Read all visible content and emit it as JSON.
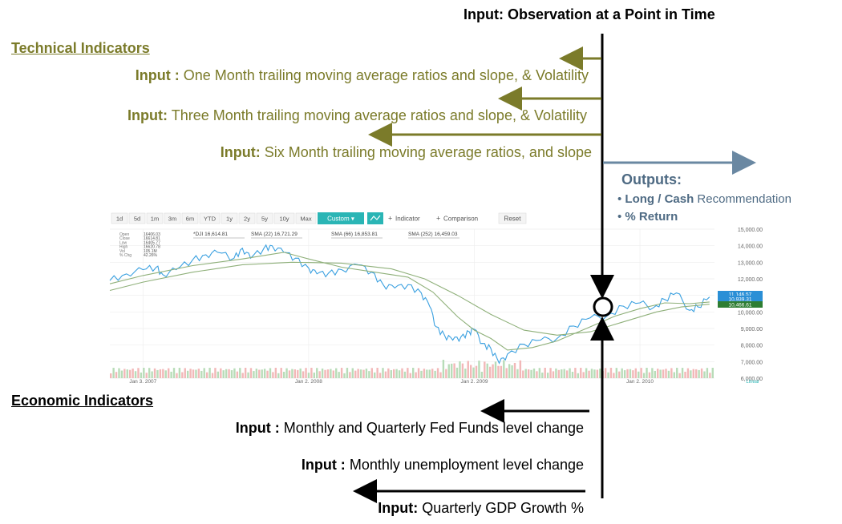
{
  "title": "Input: Observation at a Point in Time",
  "technical": {
    "heading": "Technical Indicators",
    "inputs": [
      {
        "label": "Input :",
        "text": "One Month trailing moving average ratios and slope, & Volatility"
      },
      {
        "label": "Input:",
        "text": "Three Month trailing moving average ratios and slope, & Volatility"
      },
      {
        "label": "Input:",
        "text": "Six Month trailing moving average ratios, and slope"
      }
    ]
  },
  "outputs": {
    "heading": "Outputs:",
    "items": [
      {
        "bold": "Long / Cash",
        "rest": " Recommendation"
      },
      {
        "bold": "% Return",
        "rest": ""
      }
    ]
  },
  "economic": {
    "heading": "Economic Indicators",
    "inputs": [
      {
        "label": "Input :",
        "text": "Monthly and Quarterly Fed Funds level change"
      },
      {
        "label": "Input :",
        "text": "Monthly unemployment level change"
      },
      {
        "label": "Input:",
        "text": "Quarterly GDP Growth %"
      }
    ]
  },
  "colors": {
    "olive": "#7b7b2a",
    "steel": "#4f6b84",
    "price": "#3aa0e0",
    "sma": "#8fb07a",
    "toolbar_active": "#2ab5b5",
    "badge_blue": "#2a8fd6",
    "badge_green": "#2e7d32"
  },
  "chart_toolbar": {
    "ranges": [
      "1d",
      "5d",
      "1m",
      "3m",
      "6m",
      "YTD",
      "1y",
      "2y",
      "5y",
      "10y",
      "Max"
    ],
    "custom": "Custom ▾",
    "indicator": "Indicator",
    "comparison": "Comparison",
    "reset": "Reset"
  },
  "chart_info": {
    "ohlc_labels": [
      "Open",
      "Close",
      "Low",
      "High",
      "Vol",
      "% Chg"
    ],
    "ohlc_values": [
      "16406.03",
      "16614.81",
      "16405.77",
      "16620.78",
      "105.1M",
      "42.26%"
    ],
    "legend": [
      "*DJI 16,614.81",
      "SMA (22) 16,721.29",
      "SMA (66) 16,853.81",
      "SMA (252) 16,459.03"
    ],
    "badges": [
      "11,146.57",
      "10,939.31",
      "10,466.61"
    ],
    "scale_label": "Linear"
  },
  "chart_data": {
    "type": "line",
    "x_ticks": [
      "Jan 3, 2007",
      "Jan 2, 2008",
      "Jan 2, 2009",
      "Jan 2, 2010"
    ],
    "y_ticks": [
      "15,000.00",
      "14,000.00",
      "13,000.00",
      "12,000.00",
      "11,000.00",
      "10,000.00",
      "9,000.00",
      "8,000.00",
      "7,000.00",
      "6,000.00"
    ],
    "ylim": [
      6000,
      15000
    ],
    "xlim": [
      2006.8,
      2010.45
    ],
    "observation_x": 2010.05,
    "series": [
      {
        "name": "*DJI",
        "x": [
          2006.8,
          2006.9,
          2007.0,
          2007.08,
          2007.12,
          2007.2,
          2007.3,
          2007.38,
          2007.45,
          2007.55,
          2007.6,
          2007.65,
          2007.73,
          2007.78,
          2007.85,
          2007.92,
          2008.0,
          2008.05,
          2008.12,
          2008.2,
          2008.3,
          2008.38,
          2008.45,
          2008.52,
          2008.6,
          2008.68,
          2008.73,
          2008.77,
          2008.82,
          2008.87,
          2008.92,
          2008.97,
          2009.0,
          2009.05,
          2009.1,
          2009.15,
          2009.2,
          2009.3,
          2009.4,
          2009.5,
          2009.6,
          2009.7,
          2009.8,
          2009.9,
          2010.0,
          2010.08,
          2010.15,
          2010.22,
          2010.3,
          2010.35,
          2010.42
        ],
        "values": [
          11900,
          12300,
          12550,
          12700,
          12250,
          12550,
          13150,
          13450,
          13600,
          13250,
          13850,
          13250,
          13850,
          14000,
          13600,
          13250,
          12650,
          12300,
          12350,
          12550,
          12850,
          12400,
          11650,
          11450,
          11650,
          11150,
          10350,
          9100,
          8600,
          8300,
          8500,
          8800,
          8950,
          8100,
          7800,
          6900,
          7450,
          8050,
          8300,
          8400,
          9150,
          9650,
          9750,
          10350,
          10550,
          10250,
          10750,
          11150,
          10100,
          10300,
          10900
        ]
      },
      {
        "name": "SMA (66)",
        "x": [
          2006.8,
          2007.0,
          2007.3,
          2007.6,
          2007.85,
          2008.0,
          2008.2,
          2008.4,
          2008.6,
          2008.75,
          2008.9,
          2009.0,
          2009.1,
          2009.2,
          2009.35,
          2009.5,
          2009.7,
          2009.85,
          2010.0,
          2010.15,
          2010.3,
          2010.42
        ],
        "values": [
          11700,
          12200,
          12800,
          13200,
          13600,
          13200,
          12700,
          12400,
          12100,
          11200,
          9700,
          8900,
          8400,
          7700,
          7850,
          8250,
          9100,
          9750,
          10200,
          10550,
          10500,
          10600
        ]
      },
      {
        "name": "SMA (252)",
        "x": [
          2006.8,
          2007.0,
          2007.3,
          2007.6,
          2007.9,
          2008.2,
          2008.5,
          2008.7,
          2008.9,
          2009.1,
          2009.3,
          2009.5,
          2009.7,
          2009.9,
          2010.1,
          2010.25,
          2010.42
        ],
        "values": [
          11300,
          11800,
          12400,
          12850,
          13000,
          12950,
          12600,
          12000,
          11000,
          9850,
          8900,
          8600,
          8800,
          9400,
          10000,
          10300,
          10466
        ]
      }
    ]
  }
}
